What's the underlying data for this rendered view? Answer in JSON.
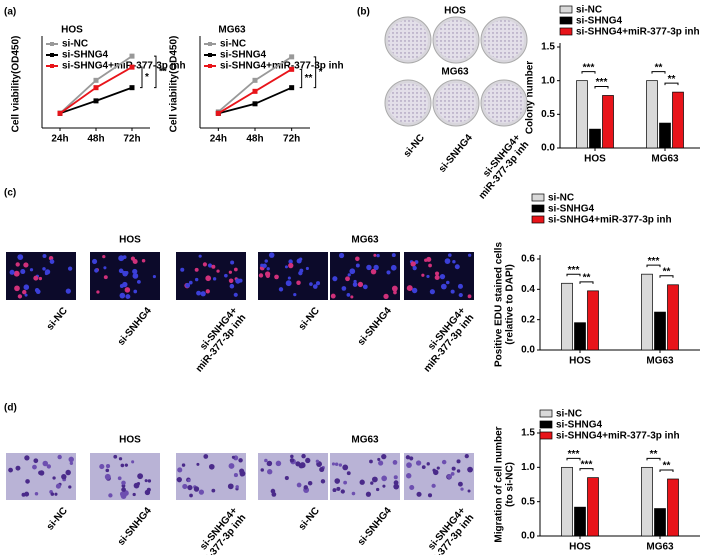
{
  "panel_labels": [
    "(a)",
    "(b)",
    "(c)",
    "(d)"
  ],
  "image_panels": [
    {
      "titles": [
        "HOS",
        "MG63"
      ],
      "labels": [
        "si-NC",
        "si-SNHG4",
        [
          "si-SNHG4+",
          "miR-377-3p inh"
        ]
      ]
    },
    {
      "titles": [
        "HOS",
        "MG63"
      ],
      "labels": [
        "si-NC",
        "si-SNHG4",
        [
          "si-SNHG4+",
          "miR-377-3p inh"
        ],
        "si-NC",
        "si-SNHG4",
        [
          "si-SNHG4+",
          "miR-377-3p inh"
        ]
      ]
    },
    {
      "titles": [
        "HOS",
        "MG63"
      ],
      "labels": [
        "si-NC",
        "si-SNHG4",
        [
          "si-SNHG4+",
          "miR-377-3p inh"
        ],
        "si-NC",
        "si-SNHG4",
        [
          "si-SNHG4+",
          "miR-377-3p inh"
        ]
      ]
    }
  ],
  "chart_data": [
    {
      "type": "line",
      "title": "HOS",
      "y_label": [
        "Cell viability(OD450)"
      ],
      "categories": [
        "24h",
        "48h",
        "72h"
      ],
      "ylim": [
        0,
        1.2
      ],
      "series": [
        {
          "name": "si-NC",
          "color": "#999999",
          "values": [
            0.2,
            0.65,
            0.98
          ]
        },
        {
          "name": "si-SHNG4",
          "color": "#000000",
          "values": [
            0.2,
            0.37,
            0.55
          ]
        },
        {
          "name": "si-SHNG4+miR-377-3p inh",
          "color": "#e8141a",
          "values": [
            0.2,
            0.55,
            0.83
          ]
        }
      ],
      "annotations": [
        "*",
        "**"
      ]
    },
    {
      "type": "line",
      "title": "MG63",
      "y_label": [
        "Cell viability(OD450)"
      ],
      "categories": [
        "24h",
        "48h",
        "72h"
      ],
      "ylim": [
        0,
        1.2
      ],
      "series": [
        {
          "name": "si-NC",
          "color": "#999999",
          "values": [
            0.22,
            0.65,
            0.97
          ]
        },
        {
          "name": "si-SHNG4",
          "color": "#000000",
          "values": [
            0.2,
            0.33,
            0.55
          ]
        },
        {
          "name": "si-SHNG4+miR-377-3p inh",
          "color": "#e8141a",
          "values": [
            0.2,
            0.5,
            0.8
          ]
        }
      ],
      "annotations": [
        "**",
        "*"
      ]
    },
    {
      "type": "bar",
      "y_label": [
        "Colony number"
      ],
      "categories": [
        "HOS",
        "MG63"
      ],
      "ylim": [
        0,
        1.5
      ],
      "yticks": [
        {
          "value": 0,
          "label": "0.0"
        },
        {
          "value": 0.5,
          "label": "0.5"
        },
        {
          "value": 1,
          "label": "1.0"
        },
        {
          "value": 1.5,
          "label": "1.5"
        }
      ],
      "series": [
        {
          "name": "si-NC",
          "color": "#d9d9d9",
          "values": [
            1.0,
            1.0
          ]
        },
        {
          "name": "si-SHNG4",
          "color": "#000000",
          "values": [
            0.28,
            0.37
          ]
        },
        {
          "name": "si-SHNG4+miR-377-3p inh",
          "color": "#e8141a",
          "values": [
            0.78,
            0.83
          ]
        }
      ],
      "annotations": [
        "***",
        "***",
        "**",
        "**"
      ]
    },
    {
      "type": "bar",
      "y_label": [
        "Positive EDU stained cells",
        "(relative to DAPI)"
      ],
      "categories": [
        "HOS",
        "MG63"
      ],
      "ylim": [
        0,
        0.6
      ],
      "yticks": [
        {
          "value": 0,
          "label": "0.0"
        },
        0.2,
        0.4,
        0.6
      ],
      "series": [
        {
          "name": "si-NC",
          "color": "#d9d9d9",
          "values": [
            0.44,
            0.5
          ]
        },
        {
          "name": "si-SNHG4",
          "color": "#000000",
          "values": [
            0.18,
            0.25
          ]
        },
        {
          "name": "si-SNHG4+miR-377-3p inh",
          "color": "#e8141a",
          "values": [
            0.39,
            0.43
          ]
        }
      ],
      "annotations": [
        "***",
        "**",
        "***",
        "**"
      ]
    },
    {
      "type": "bar",
      "y_label": [
        "Migration of cell number",
        "(to si-NC)"
      ],
      "categories": [
        "HOS",
        "MG63"
      ],
      "ylim": [
        0,
        1.5
      ],
      "yticks": [
        {
          "value": 0,
          "label": "0.0"
        },
        {
          "value": 0.5,
          "label": "0.5"
        },
        {
          "value": 1,
          "label": "1.0"
        },
        {
          "value": 1.5,
          "label": "1.5"
        }
      ],
      "series": [
        {
          "name": "si-NC",
          "color": "#d9d9d9",
          "values": [
            1.0,
            1.0
          ]
        },
        {
          "name": "si-SHNG4",
          "color": "#000000",
          "values": [
            0.42,
            0.4
          ]
        },
        {
          "name": "si-SHNG4+miR-377-3p inh",
          "color": "#e8141a",
          "values": [
            0.85,
            0.83
          ]
        }
      ],
      "annotations": [
        "***",
        "***",
        "**",
        "**"
      ]
    }
  ]
}
